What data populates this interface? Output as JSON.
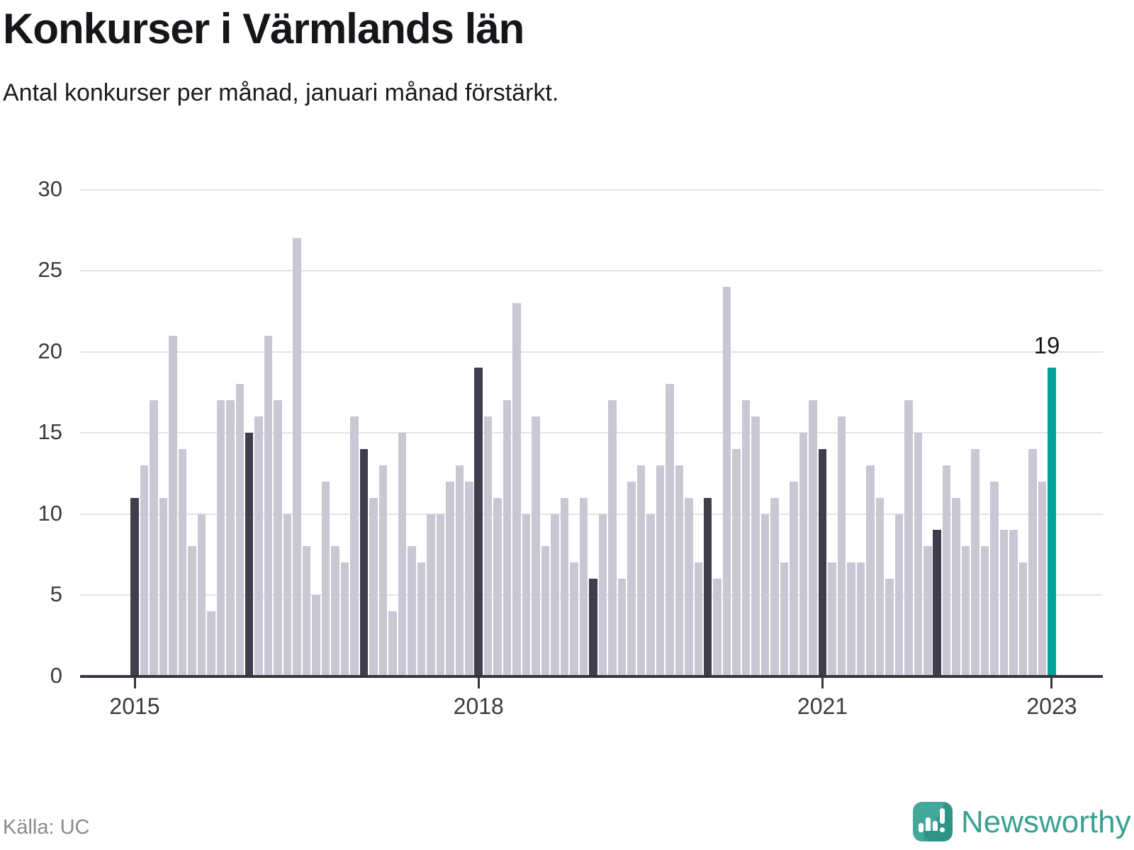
{
  "header": {
    "title": "Konkurser i Värmlands län",
    "subtitle": "Antal konkurser per månad, januari månad förstärkt."
  },
  "footer": {
    "source": "Källa: UC",
    "brand": "Newsworthy"
  },
  "chart_data": {
    "type": "bar",
    "title": "Konkurser i Värmlands län",
    "subtitle": "Antal konkurser per månad, januari månad förstärkt.",
    "x_start": "2015-01",
    "x_end": "2023-01",
    "ylim": [
      0,
      30
    ],
    "yticks": [
      0,
      5,
      10,
      15,
      20,
      25,
      30
    ],
    "grid": true,
    "legend_note": "januari månad förstärkt (mörka staplar), januari 2023 i turkos",
    "x_ticks": [
      {
        "label": "2015",
        "month_index": 0
      },
      {
        "label": "2018",
        "month_index": 36
      },
      {
        "label": "2021",
        "month_index": 72
      },
      {
        "label": "2023",
        "month_index": 96
      }
    ],
    "series": [
      {
        "year": 2015,
        "values": [
          11,
          13,
          17,
          11,
          21,
          14,
          8,
          10,
          4,
          17,
          17,
          18
        ]
      },
      {
        "year": 2016,
        "values": [
          15,
          16,
          21,
          17,
          10,
          27,
          8,
          5,
          12,
          8,
          7,
          16
        ]
      },
      {
        "year": 2017,
        "values": [
          14,
          11,
          13,
          4,
          15,
          8,
          7,
          10,
          10,
          12,
          13,
          12
        ]
      },
      {
        "year": 2018,
        "values": [
          19,
          16,
          11,
          17,
          23,
          10,
          16,
          8,
          10,
          11,
          7,
          11
        ]
      },
      {
        "year": 2019,
        "values": [
          6,
          10,
          17,
          6,
          12,
          13,
          10,
          13,
          18,
          13,
          11,
          7
        ]
      },
      {
        "year": 2020,
        "values": [
          11,
          6,
          24,
          14,
          17,
          16,
          10,
          11,
          7,
          12,
          15,
          17
        ]
      },
      {
        "year": 2021,
        "values": [
          14,
          7,
          16,
          7,
          7,
          13,
          11,
          6,
          10,
          17,
          15,
          8
        ]
      },
      {
        "year": 2022,
        "values": [
          9,
          13,
          11,
          8,
          14,
          8,
          12,
          9,
          9,
          7,
          14,
          12
        ]
      },
      {
        "year": 2023,
        "values": [
          19
        ]
      }
    ],
    "highlight": {
      "month": "2023-01",
      "value": 19,
      "label": "19"
    },
    "colors": {
      "default": "#c9c7d3",
      "january": "#403e4d",
      "highlight": "#00a29a"
    }
  }
}
